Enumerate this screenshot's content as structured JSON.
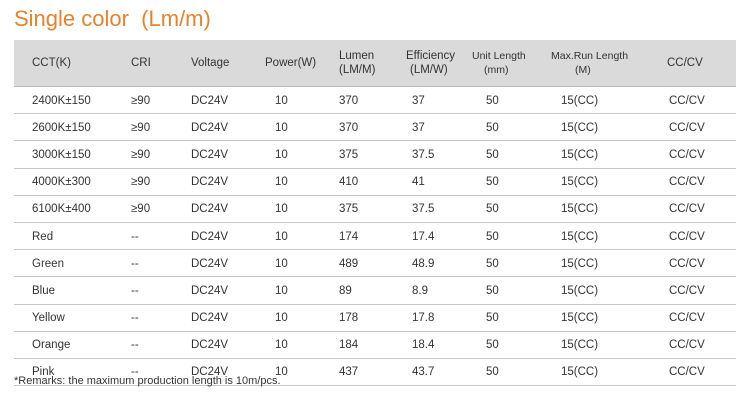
{
  "title": "Single color  (Lm/m)",
  "headers": {
    "cct": "CCT(K)",
    "cri": "CRI",
    "voltage": "Voltage",
    "power": "Power(W)",
    "lumen_line1": "Lumen",
    "lumen_line2": "(LM/M)",
    "efficiency_line1": "Efficiency",
    "efficiency_line2": "(LM/W)",
    "unit_line1": "Unit Length",
    "unit_line2": "(mm)",
    "maxrun_line1": "Max.Run Length",
    "maxrun_line2": "(M)",
    "cccv": "CC/CV"
  },
  "rows": [
    {
      "cct": "2400K±150",
      "cri": "≥90",
      "voltage": "DC24V",
      "power": "10",
      "lumen": "370",
      "efficiency": "37",
      "unit_length": "50",
      "max_run": "15(CC)",
      "cccv": "CC/CV"
    },
    {
      "cct": "2600K±150",
      "cri": "≥90",
      "voltage": "DC24V",
      "power": "10",
      "lumen": "370",
      "efficiency": "37",
      "unit_length": "50",
      "max_run": "15(CC)",
      "cccv": "CC/CV"
    },
    {
      "cct": "3000K±150",
      "cri": "≥90",
      "voltage": "DC24V",
      "power": "10",
      "lumen": "375",
      "efficiency": "37.5",
      "unit_length": "50",
      "max_run": "15(CC)",
      "cccv": "CC/CV"
    },
    {
      "cct": "4000K±300",
      "cri": "≥90",
      "voltage": "DC24V",
      "power": "10",
      "lumen": "410",
      "efficiency": "41",
      "unit_length": "50",
      "max_run": "15(CC)",
      "cccv": "CC/CV"
    },
    {
      "cct": "6100K±400",
      "cri": "≥90",
      "voltage": "DC24V",
      "power": "10",
      "lumen": "375",
      "efficiency": "37.5",
      "unit_length": "50",
      "max_run": "15(CC)",
      "cccv": "CC/CV"
    },
    {
      "cct": "Red",
      "cri": "--",
      "voltage": "DC24V",
      "power": "10",
      "lumen": "174",
      "efficiency": "17.4",
      "unit_length": "50",
      "max_run": "15(CC)",
      "cccv": "CC/CV"
    },
    {
      "cct": "Green",
      "cri": "--",
      "voltage": "DC24V",
      "power": "10",
      "lumen": "489",
      "efficiency": "48.9",
      "unit_length": "50",
      "max_run": "15(CC)",
      "cccv": "CC/CV"
    },
    {
      "cct": "Blue",
      "cri": "--",
      "voltage": "DC24V",
      "power": "10",
      "lumen": "89",
      "efficiency": "8.9",
      "unit_length": "50",
      "max_run": "15(CC)",
      "cccv": "CC/CV"
    },
    {
      "cct": "Yellow",
      "cri": "--",
      "voltage": "DC24V",
      "power": "10",
      "lumen": "178",
      "efficiency": "17.8",
      "unit_length": "50",
      "max_run": "15(CC)",
      "cccv": "CC/CV"
    },
    {
      "cct": "Orange",
      "cri": "--",
      "voltage": "DC24V",
      "power": "10",
      "lumen": "184",
      "efficiency": "18.4",
      "unit_length": "50",
      "max_run": "15(CC)",
      "cccv": "CC/CV"
    },
    {
      "cct": "Pink",
      "cri": "--",
      "voltage": "DC24V",
      "power": "10",
      "lumen": "437",
      "efficiency": "43.7",
      "unit_length": "50",
      "max_run": "15(CC)",
      "cccv": "CC/CV"
    }
  ],
  "remark": "*Remarks: the maximum production length is 10m/pcs.",
  "colors": {
    "title": "#e8822a",
    "header_bg": "#dadada",
    "row_border": "#c6c6c6",
    "text": "#333333"
  }
}
